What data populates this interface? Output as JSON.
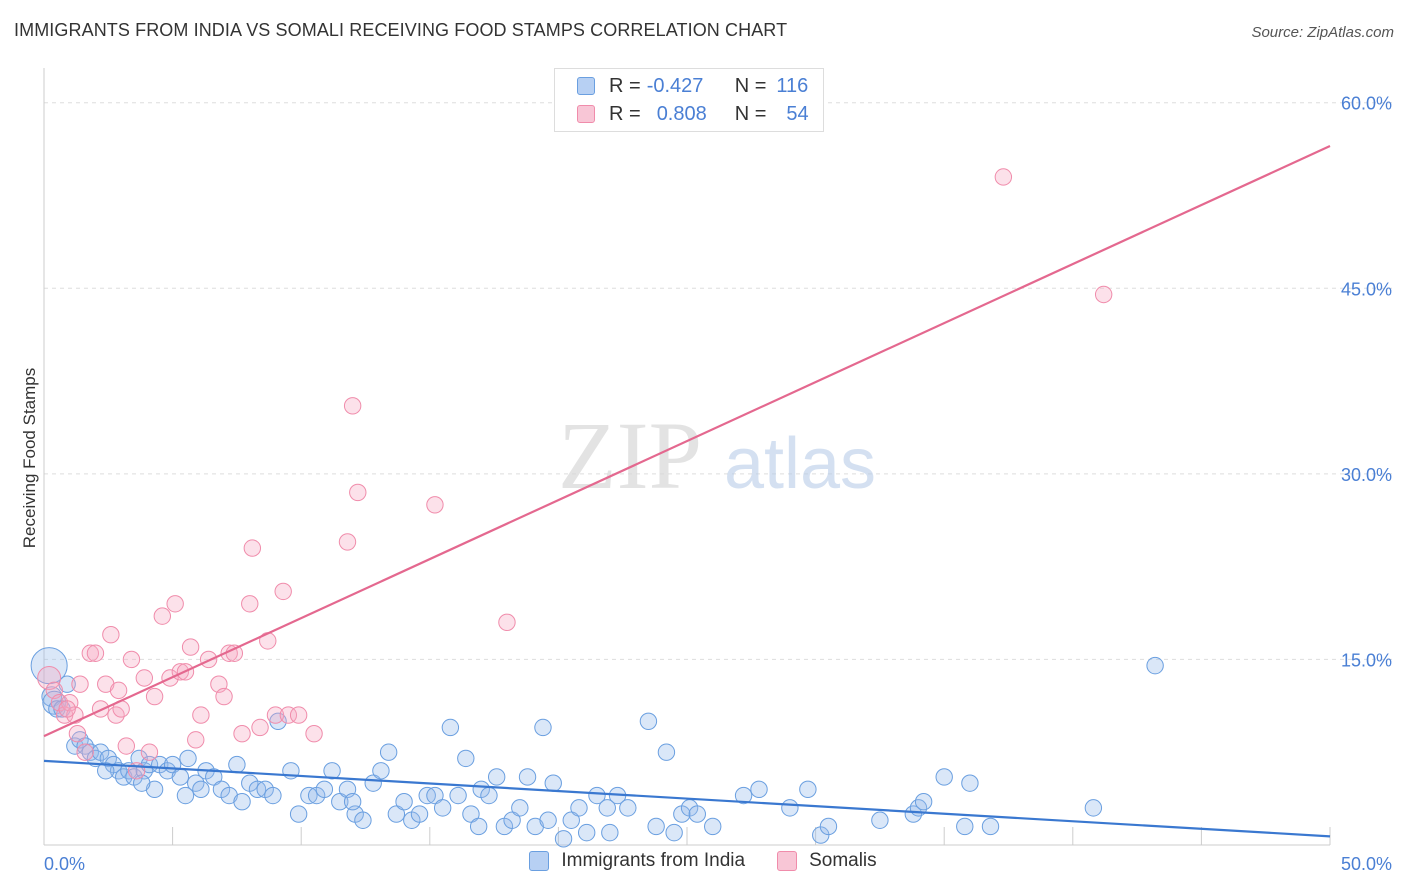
{
  "title": "IMMIGRANTS FROM INDIA VS SOMALI RECEIVING FOOD STAMPS CORRELATION CHART",
  "source": "Source: ZipAtlas.com",
  "watermark": {
    "zip": "ZIP",
    "atlas": "atlas"
  },
  "legend": {
    "india": {
      "r_label": "R = ",
      "r_value": "-0.427",
      "n_label": "N = ",
      "n_value": "116"
    },
    "somali": {
      "r_label": "R = ",
      "r_value": "0.808",
      "n_label": "N = ",
      "n_value": "54"
    }
  },
  "bottom_legend": {
    "india": "Immigrants from India",
    "somali": "Somalis"
  },
  "colors": {
    "india": "#6a9fe0",
    "india_line": "#3a78d0",
    "somali": "#f08cab",
    "somali_line": "#e4688f",
    "tick_text": "#4a7fd4"
  },
  "chart_data": {
    "type": "scatter",
    "xlabel": "",
    "ylabel": "Receiving Food Stamps",
    "xlim": [
      0,
      50
    ],
    "ylim": [
      0,
      62
    ],
    "x_tick_labels": [
      "0.0%",
      "50.0%"
    ],
    "y_ticks": [
      15,
      30,
      45,
      60
    ],
    "y_tick_labels": [
      "15.0%",
      "30.0%",
      "45.0%",
      "60.0%"
    ],
    "series": [
      {
        "name": "Immigrants from India",
        "trend": {
          "x": [
            0,
            50
          ],
          "y": [
            6.8,
            0.7
          ]
        },
        "points": [
          [
            0.2,
            14.5,
            22
          ],
          [
            0.3,
            12.0,
            12
          ],
          [
            0.4,
            11.5,
            14
          ],
          [
            0.5,
            11.0,
            10
          ],
          [
            0.9,
            13.0,
            10
          ],
          [
            0.7,
            11.0,
            10
          ],
          [
            1.2,
            8.0,
            10
          ],
          [
            1.4,
            8.5,
            10
          ],
          [
            1.6,
            8.0,
            10
          ],
          [
            1.8,
            7.5,
            10
          ],
          [
            2.0,
            7.0,
            10
          ],
          [
            2.2,
            7.5,
            10
          ],
          [
            2.5,
            7.0,
            10
          ],
          [
            2.7,
            6.5,
            10
          ],
          [
            2.9,
            6.0,
            10
          ],
          [
            3.1,
            5.5,
            10
          ],
          [
            3.3,
            6.0,
            10
          ],
          [
            3.5,
            5.5,
            10
          ],
          [
            3.7,
            7.0,
            10
          ],
          [
            3.9,
            6.0,
            10
          ],
          [
            4.1,
            6.5,
            10
          ],
          [
            4.3,
            4.5,
            10
          ],
          [
            4.5,
            6.5,
            10
          ],
          [
            4.8,
            6.0,
            10
          ],
          [
            5.0,
            6.5,
            10
          ],
          [
            5.3,
            5.5,
            10
          ],
          [
            5.6,
            7.0,
            10
          ],
          [
            5.9,
            5.0,
            10
          ],
          [
            6.1,
            4.5,
            10
          ],
          [
            6.3,
            6.0,
            10
          ],
          [
            6.6,
            5.5,
            10
          ],
          [
            6.9,
            4.5,
            10
          ],
          [
            7.2,
            4.0,
            10
          ],
          [
            7.5,
            6.5,
            10
          ],
          [
            7.7,
            3.5,
            10
          ],
          [
            8.0,
            5.0,
            10
          ],
          [
            8.3,
            4.5,
            10
          ],
          [
            8.6,
            4.5,
            10
          ],
          [
            8.9,
            4.0,
            10
          ],
          [
            9.1,
            10.0,
            10
          ],
          [
            9.6,
            6.0,
            10
          ],
          [
            9.9,
            2.5,
            10
          ],
          [
            10.3,
            4.0,
            10
          ],
          [
            10.6,
            4.0,
            10
          ],
          [
            10.9,
            4.5,
            10
          ],
          [
            11.2,
            6.0,
            10
          ],
          [
            11.5,
            3.5,
            10
          ],
          [
            11.8,
            4.5,
            10
          ],
          [
            12.1,
            2.5,
            10
          ],
          [
            12.4,
            2.0,
            10
          ],
          [
            12.8,
            5.0,
            10
          ],
          [
            13.1,
            6.0,
            10
          ],
          [
            13.4,
            7.5,
            10
          ],
          [
            13.7,
            2.5,
            10
          ],
          [
            14.0,
            3.5,
            10
          ],
          [
            14.3,
            2.0,
            10
          ],
          [
            14.6,
            2.5,
            10
          ],
          [
            14.9,
            4.0,
            10
          ],
          [
            15.2,
            4.0,
            10
          ],
          [
            15.5,
            3.0,
            10
          ],
          [
            15.8,
            9.5,
            10
          ],
          [
            16.1,
            4.0,
            10
          ],
          [
            16.4,
            7.0,
            10
          ],
          [
            16.6,
            2.5,
            10
          ],
          [
            17.0,
            4.5,
            10
          ],
          [
            17.3,
            4.0,
            10
          ],
          [
            17.6,
            5.5,
            10
          ],
          [
            17.9,
            1.5,
            10
          ],
          [
            18.2,
            2.0,
            10
          ],
          [
            18.5,
            3.0,
            10
          ],
          [
            18.8,
            5.5,
            10
          ],
          [
            19.1,
            1.5,
            10
          ],
          [
            19.4,
            9.5,
            10
          ],
          [
            19.8,
            5.0,
            10
          ],
          [
            20.2,
            0.5,
            10
          ],
          [
            20.5,
            2.0,
            10
          ],
          [
            20.8,
            3.0,
            10
          ],
          [
            21.1,
            1.0,
            10
          ],
          [
            21.5,
            4.0,
            10
          ],
          [
            21.9,
            3.0,
            10
          ],
          [
            22.3,
            4.0,
            10
          ],
          [
            22.7,
            3.0,
            10
          ],
          [
            23.5,
            10.0,
            10
          ],
          [
            23.8,
            1.5,
            10
          ],
          [
            24.2,
            7.5,
            10
          ],
          [
            24.5,
            1.0,
            10
          ],
          [
            24.8,
            2.5,
            10
          ],
          [
            25.1,
            3.0,
            10
          ],
          [
            25.4,
            2.5,
            10
          ],
          [
            26.0,
            1.5,
            10
          ],
          [
            27.2,
            4.0,
            10
          ],
          [
            27.8,
            4.5,
            10
          ],
          [
            29.0,
            3.0,
            10
          ],
          [
            29.7,
            4.5,
            10
          ],
          [
            30.2,
            0.8,
            10
          ],
          [
            30.5,
            1.5,
            10
          ],
          [
            32.5,
            2.0,
            10
          ],
          [
            33.8,
            2.5,
            10
          ],
          [
            34.0,
            3.0,
            10
          ],
          [
            34.2,
            3.5,
            10
          ],
          [
            35.0,
            5.5,
            10
          ],
          [
            35.8,
            1.5,
            10
          ],
          [
            36.0,
            5.0,
            10
          ],
          [
            36.8,
            1.5,
            10
          ],
          [
            40.8,
            3.0,
            10
          ],
          [
            43.2,
            14.5,
            10
          ],
          [
            31.5,
            12.0,
            0
          ],
          [
            9.0,
            7.5,
            0
          ],
          [
            2.4,
            6.0,
            10
          ],
          [
            3.8,
            5.0,
            10
          ],
          [
            5.5,
            4.0,
            10
          ],
          [
            12.0,
            3.5,
            10
          ],
          [
            16.9,
            1.5,
            10
          ],
          [
            19.6,
            2.0,
            10
          ],
          [
            22.0,
            1.0,
            10
          ]
        ]
      },
      {
        "name": "Somalis",
        "trend": {
          "x": [
            0,
            50
          ],
          "y": [
            8.8,
            56.5
          ]
        },
        "points": [
          [
            0.2,
            13.5,
            14
          ],
          [
            0.4,
            12.5,
            10
          ],
          [
            0.6,
            11.5,
            10
          ],
          [
            0.8,
            10.5,
            10
          ],
          [
            1.0,
            11.5,
            10
          ],
          [
            1.2,
            10.5,
            10
          ],
          [
            1.4,
            13.0,
            10
          ],
          [
            1.6,
            7.5,
            10
          ],
          [
            1.8,
            15.5,
            10
          ],
          [
            2.0,
            15.5,
            10
          ],
          [
            2.2,
            11.0,
            10
          ],
          [
            2.4,
            13.0,
            10
          ],
          [
            2.6,
            17.0,
            10
          ],
          [
            2.8,
            10.5,
            10
          ],
          [
            3.0,
            11.0,
            10
          ],
          [
            3.2,
            8.0,
            10
          ],
          [
            3.4,
            15.0,
            10
          ],
          [
            3.6,
            6.0,
            10
          ],
          [
            3.9,
            13.5,
            10
          ],
          [
            4.1,
            7.5,
            10
          ],
          [
            4.3,
            12.0,
            10
          ],
          [
            4.6,
            18.5,
            10
          ],
          [
            4.9,
            13.5,
            10
          ],
          [
            5.1,
            19.5,
            10
          ],
          [
            5.3,
            14.0,
            10
          ],
          [
            5.5,
            14.0,
            10
          ],
          [
            5.7,
            16.0,
            10
          ],
          [
            5.9,
            8.5,
            10
          ],
          [
            6.1,
            10.5,
            10
          ],
          [
            6.4,
            15.0,
            10
          ],
          [
            6.8,
            13.0,
            10
          ],
          [
            7.0,
            12.0,
            10
          ],
          [
            7.2,
            15.5,
            10
          ],
          [
            7.4,
            15.5,
            10
          ],
          [
            7.7,
            9.0,
            10
          ],
          [
            8.0,
            19.5,
            10
          ],
          [
            8.1,
            24.0,
            10
          ],
          [
            8.4,
            9.5,
            10
          ],
          [
            8.7,
            16.5,
            10
          ],
          [
            9.0,
            10.5,
            10
          ],
          [
            9.3,
            20.5,
            10
          ],
          [
            9.5,
            10.5,
            10
          ],
          [
            9.9,
            10.5,
            10
          ],
          [
            10.5,
            9.0,
            10
          ],
          [
            11.8,
            24.5,
            10
          ],
          [
            12.0,
            35.5,
            10
          ],
          [
            12.2,
            28.5,
            10
          ],
          [
            15.2,
            27.5,
            10
          ],
          [
            18.0,
            18.0,
            10
          ],
          [
            37.3,
            54.0,
            10
          ],
          [
            41.2,
            44.5,
            10
          ],
          [
            0.9,
            11.0,
            10
          ],
          [
            1.3,
            9.0,
            10
          ],
          [
            2.9,
            12.5,
            10
          ]
        ]
      }
    ]
  }
}
